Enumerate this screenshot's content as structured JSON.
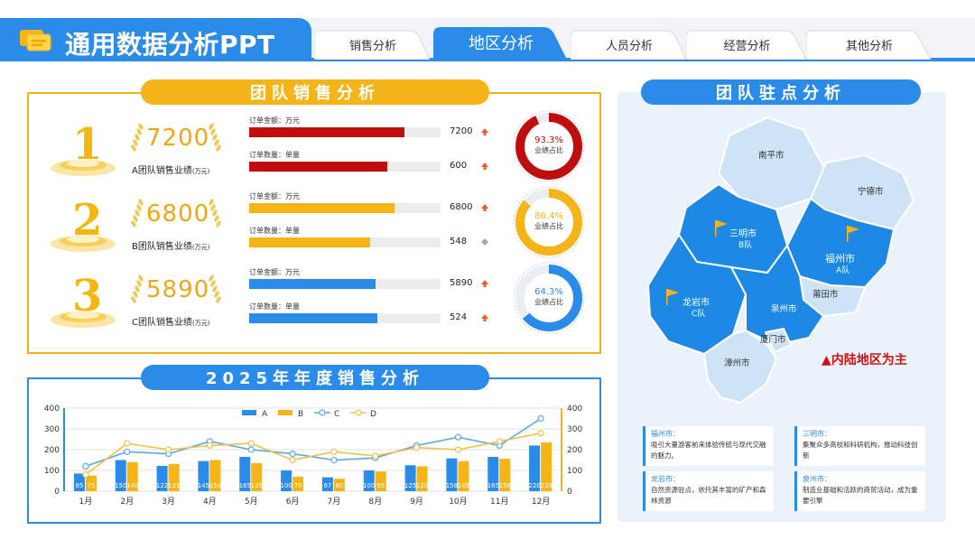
{
  "header": {
    "title": "通用数据分析PPT",
    "tabs": [
      {
        "label": "销售分析",
        "active": false
      },
      {
        "label": "地区分析",
        "active": true
      },
      {
        "label": "人员分析",
        "active": false
      },
      {
        "label": "经营分析",
        "active": false
      },
      {
        "label": "其他分析",
        "active": false
      }
    ]
  },
  "team_sales": {
    "title": "团队销售分析",
    "teams": [
      {
        "rank": "1",
        "value": "7200",
        "label": "A团队销售业绩",
        "unit": "(万元)",
        "metrics": [
          {
            "label": "订单金额：万元",
            "value": "7200",
            "fill": 0.81,
            "trend": "up"
          },
          {
            "label": "订单数量：单量",
            "value": "600",
            "fill": 0.72,
            "trend": "up"
          }
        ],
        "share": "93.3%",
        "share_fraction": 0.933,
        "share_label": "业绩占比",
        "color": "#c00d0d"
      },
      {
        "rank": "2",
        "value": "6800",
        "label": "B团队销售业绩",
        "unit": "(万元)",
        "metrics": [
          {
            "label": "订单金额：万元",
            "value": "6800",
            "fill": 0.76,
            "trend": "up"
          },
          {
            "label": "订单数量：单量",
            "value": "548",
            "fill": 0.63,
            "trend": "flat"
          }
        ],
        "share": "86.4%",
        "share_fraction": 0.864,
        "share_label": "业绩占比",
        "color": "#f5b417"
      },
      {
        "rank": "3",
        "value": "5890",
        "label": "C团队销售业绩",
        "unit": "(万元)",
        "metrics": [
          {
            "label": "订单金额：万元",
            "value": "5890",
            "fill": 0.66,
            "trend": "up"
          },
          {
            "label": "订单数量：单量",
            "value": "524",
            "fill": 0.67,
            "trend": "up"
          }
        ],
        "share": "64.3%",
        "share_fraction": 0.643,
        "share_label": "业绩占比",
        "color": "#2a8be8"
      }
    ]
  },
  "annual": {
    "title": "2025年年度销售分析"
  },
  "chart_data": {
    "type": "bar",
    "categories": [
      "1月",
      "2月",
      "3月",
      "4月",
      "5月",
      "6月",
      "7月",
      "8月",
      "9月",
      "10月",
      "11月",
      "12月"
    ],
    "series": [
      {
        "name": "A",
        "type": "bar",
        "color": "#2a8be8",
        "values": [
          85,
          150,
          122,
          145,
          165,
          100,
          67,
          100,
          125,
          158,
          165,
          220
        ]
      },
      {
        "name": "B",
        "type": "bar",
        "color": "#f5b417",
        "values": [
          75,
          140,
          131,
          150,
          135,
          70,
          60,
          95,
          120,
          145,
          156,
          235
        ]
      },
      {
        "name": "C",
        "type": "line",
        "color": "#5aa9e6",
        "values": [
          120,
          190,
          180,
          240,
          200,
          180,
          150,
          160,
          220,
          260,
          220,
          350
        ]
      },
      {
        "name": "D",
        "type": "line",
        "color": "#f0c24a",
        "values": [
          80,
          230,
          200,
          220,
          230,
          150,
          190,
          170,
          210,
          200,
          240,
          280
        ]
      }
    ],
    "y_left": {
      "min": 0,
      "max": 400,
      "ticks": [
        "0",
        "100",
        "200",
        "300",
        "400"
      ]
    },
    "y_right": {
      "min": 0,
      "max": 400,
      "ticks": [
        "0",
        "100",
        "200",
        "300",
        "400"
      ]
    },
    "grid": true,
    "legend": "top"
  },
  "stations": {
    "title": "团队驻点分析",
    "cities": {
      "nanping": "南平市",
      "ningde": "宁德市",
      "sanming": "三明市",
      "sanming_team": "B队",
      "fuzhou": "福州市",
      "fuzhou_team": "A队",
      "putian": "莆田市",
      "longyan": "龙岩市",
      "longyan_team": "C队",
      "quanzhou": "泉州市",
      "xiamen": "厦门市",
      "zhangzhou": "漳州市"
    },
    "note": "▲内陆地区为主",
    "cards": [
      {
        "title": "福州市：",
        "desc": "吸引大量游客前来体验传统与现代交融的魅力。"
      },
      {
        "title": "三明市：",
        "desc": "集聚众多高校和科研机构，推动科技创新"
      },
      {
        "title": "龙岩市：",
        "desc": "自然资源驻点，依托其丰富的矿产和森林资源"
      },
      {
        "title": "泉州市：",
        "desc": "制造业基础和活跃的商贸活动，成为重要引擎"
      }
    ]
  }
}
